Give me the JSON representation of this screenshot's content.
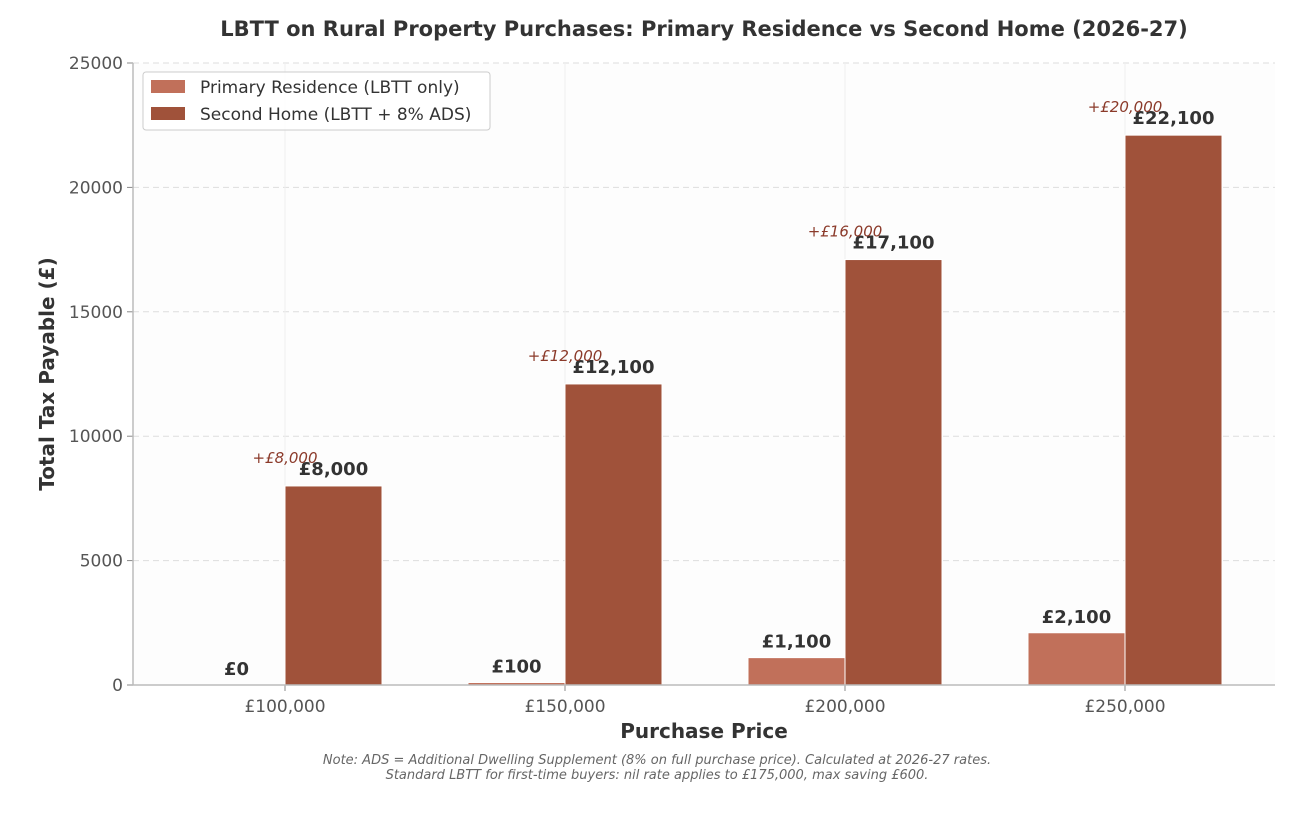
{
  "chart_data": {
    "type": "bar",
    "title": "LBTT on Rural Property Purchases: Primary Residence vs Second Home (2026-27)",
    "xlabel": "Purchase Price",
    "ylabel": "Total Tax Payable (£)",
    "categories": [
      "£100,000",
      "£150,000",
      "£200,000",
      "£250,000"
    ],
    "ylim": [
      0,
      25000
    ],
    "yticks": [
      0,
      5000,
      10000,
      15000,
      20000,
      25000
    ],
    "ytick_labels": [
      "0",
      "5000",
      "10000",
      "15000",
      "20000",
      "25000"
    ],
    "grid": true,
    "legend_position": "top-left",
    "series": [
      {
        "name": "Primary Residence (LBTT only)",
        "color": "#c1705a",
        "values": [
          0,
          100,
          1100,
          2100
        ],
        "value_labels": [
          "£0",
          "£100",
          "£1,100",
          "£2,100"
        ]
      },
      {
        "name": "Second Home (LBTT + 8% ADS)",
        "color": "#a0523a",
        "values": [
          8000,
          12100,
          17100,
          22100
        ],
        "value_labels": [
          "£8,000",
          "£12,100",
          "£17,100",
          "£22,100"
        ]
      }
    ],
    "annotations": [
      "+£8,000",
      "+£12,000",
      "+£16,000",
      "+£20,000"
    ],
    "annotation_color": "#8b3a2a",
    "note_lines": [
      "Note: ADS = Additional Dwelling Supplement (8% on full purchase price). Calculated at 2026-27 rates.",
      "Standard LBTT for first-time buyers: nil rate applies to £175,000, max saving £600."
    ]
  }
}
